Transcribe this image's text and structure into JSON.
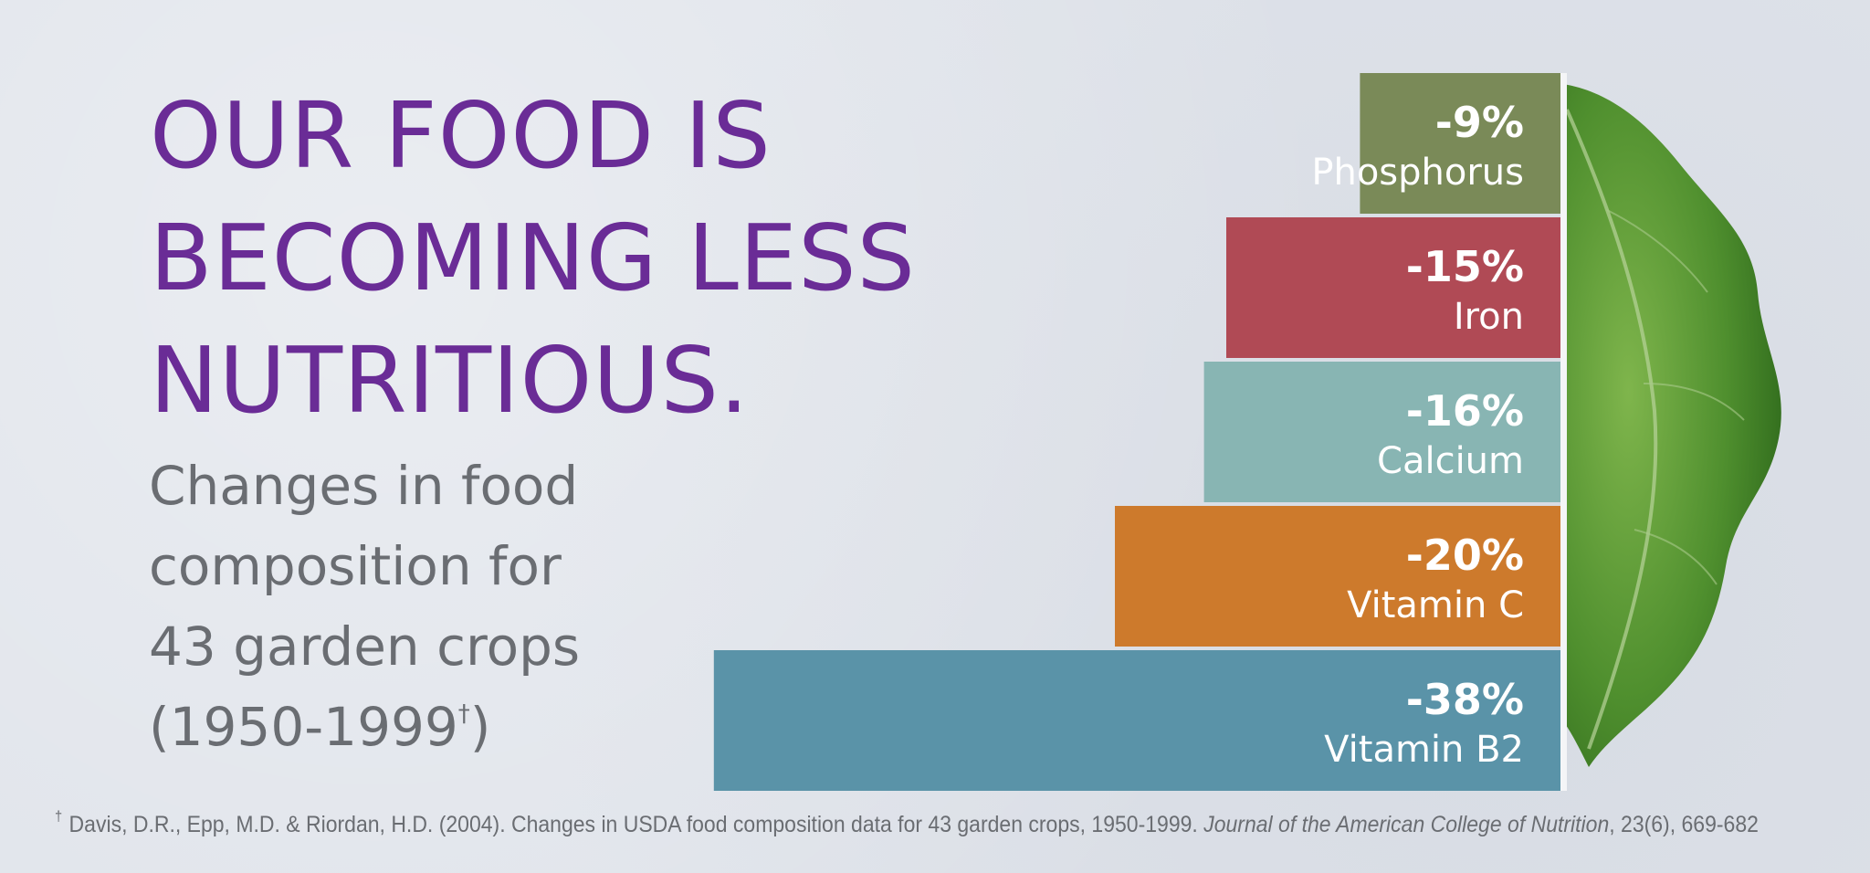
{
  "headline": {
    "line1": "OUR FOOD IS",
    "line2": "BECOMING LESS",
    "line3": "NUTRITIOUS."
  },
  "subtitle": {
    "line1": "Changes in food",
    "line2": "composition for",
    "line3": "43 garden crops",
    "line4": "(1950-1999",
    "dagger": "†",
    "line4_end": ")"
  },
  "footnote": {
    "dagger": "†",
    "text": "Davis, D.R., Epp, M.D. & Riordan, H.D. (2004). Changes in USDA food composition data for 43 garden crops, 1950-1999.",
    "journal": "Journal of the American College of Nutrition",
    "volume": ", 23(6), 669-682"
  },
  "chart_data": {
    "type": "bar",
    "orientation": "horizontal",
    "categories": [
      "Phosphorus",
      "Iron",
      "Calcium",
      "Vitamin C",
      "Vitamin B2"
    ],
    "values": [
      -9,
      -15,
      -16,
      -20,
      -38
    ],
    "labels": [
      "-9%",
      "-15%",
      "-16%",
      "-20%",
      "-38%"
    ],
    "colors": [
      "#7a8a58",
      "#b04a55",
      "#88b5b3",
      "#cd7a2c",
      "#5a93a8"
    ],
    "unit": "%",
    "title": "Changes in food composition for 43 garden crops (1950-1999)"
  }
}
